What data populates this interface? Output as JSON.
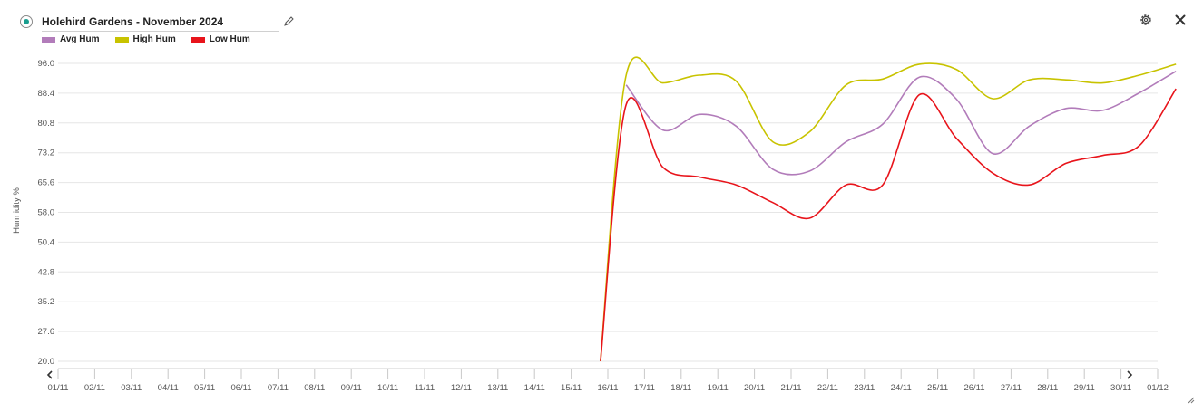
{
  "widget": {
    "title": "Holehird Gardens - November 2024",
    "icons": {
      "select": "radio-selected-icon",
      "edit": "pencil-icon",
      "settings": "gear-icon",
      "close": "close-icon",
      "prev": "chevron-left-icon",
      "next": "chevron-right-icon",
      "resize": "resize-grip-icon"
    }
  },
  "chart_data": {
    "type": "line",
    "title": "",
    "xlabel": "",
    "ylabel": "Hum idity %",
    "legend_position": "top-left",
    "grid": true,
    "ylim": [
      20.0,
      96.0
    ],
    "yticks": [
      "20.0",
      "27.6",
      "35.2",
      "42.8",
      "50.4",
      "58.0",
      "65.6",
      "73.2",
      "80.8",
      "88.4",
      "96.0"
    ],
    "categories": [
      "01/11",
      "02/11",
      "03/11",
      "04/11",
      "05/11",
      "06/11",
      "07/11",
      "08/11",
      "09/11",
      "10/11",
      "11/11",
      "12/11",
      "13/11",
      "14/11",
      "15/11",
      "16/11",
      "17/11",
      "18/11",
      "19/11",
      "20/11",
      "21/11",
      "22/11",
      "23/11",
      "24/11",
      "25/11",
      "26/11",
      "27/11",
      "28/11",
      "29/11",
      "30/11",
      "01/12"
    ],
    "series": [
      {
        "name": "Avg Hum",
        "color": "#b27cba",
        "points": [
          [
            15.5,
            90.5
          ],
          [
            16.5,
            79.0
          ],
          [
            17.5,
            83.0
          ],
          [
            18.5,
            80.0
          ],
          [
            19.5,
            69.0
          ],
          [
            20.5,
            68.5
          ],
          [
            21.5,
            76.0
          ],
          [
            22.5,
            80.5
          ],
          [
            23.5,
            92.5
          ],
          [
            24.5,
            87.0
          ],
          [
            25.5,
            73.0
          ],
          [
            26.5,
            80.0
          ],
          [
            27.5,
            84.5
          ],
          [
            28.5,
            84.0
          ],
          [
            29.5,
            88.5
          ],
          [
            30.5,
            94.0
          ]
        ]
      },
      {
        "name": "High Hum",
        "color": "#c8c300",
        "points": [
          [
            14.8,
            20.0
          ],
          [
            15.5,
            93.0
          ],
          [
            16.5,
            91.0
          ],
          [
            17.5,
            93.0
          ],
          [
            18.5,
            91.5
          ],
          [
            19.5,
            76.0
          ],
          [
            20.5,
            78.5
          ],
          [
            21.5,
            90.5
          ],
          [
            22.5,
            92.0
          ],
          [
            23.5,
            95.8
          ],
          [
            24.5,
            94.5
          ],
          [
            25.5,
            87.0
          ],
          [
            26.5,
            91.8
          ],
          [
            27.5,
            91.8
          ],
          [
            28.5,
            91.0
          ],
          [
            29.5,
            93.0
          ],
          [
            30.5,
            95.8
          ]
        ]
      },
      {
        "name": "Low Hum",
        "color": "#e8141b",
        "points": [
          [
            14.8,
            20.0
          ],
          [
            15.5,
            85.5
          ],
          [
            16.5,
            69.5
          ],
          [
            17.5,
            67.0
          ],
          [
            18.5,
            65.0
          ],
          [
            19.5,
            60.5
          ],
          [
            20.5,
            56.5
          ],
          [
            21.5,
            65.0
          ],
          [
            22.5,
            65.0
          ],
          [
            23.5,
            88.0
          ],
          [
            24.5,
            77.0
          ],
          [
            25.5,
            68.0
          ],
          [
            26.5,
            65.0
          ],
          [
            27.5,
            70.5
          ],
          [
            28.5,
            72.5
          ],
          [
            29.5,
            75.0
          ],
          [
            30.5,
            89.5
          ]
        ]
      }
    ]
  }
}
